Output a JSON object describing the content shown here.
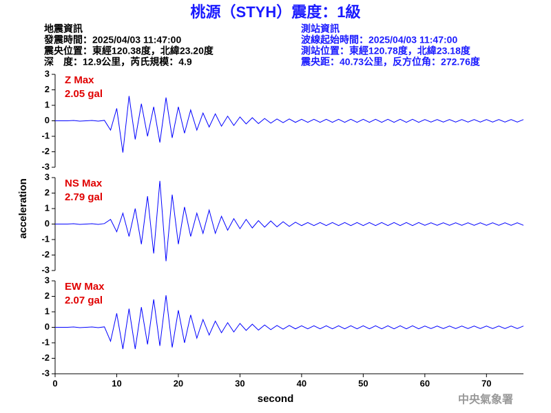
{
  "title": "桃源（STYH）震度：1級",
  "left_info": [
    "地震資訊",
    "發震時間：2025/04/03 11:47:00",
    "震央位置：東經120.38度，北緯23.20度",
    "深　度：12.9公里，芮氏規模：4.9"
  ],
  "right_info": [
    "測站資訊",
    "波線起始時間：2025/04/03 11:47:00",
    "測站位置：東經120.78度，北緯23.18度",
    "震央距：40.73公里，反方位角：272.76度"
  ],
  "ylabel": "acceleration",
  "xlabel": "second",
  "credit": "中央氣象署",
  "chart_data": [
    {
      "type": "line",
      "annotation": [
        "Z Max",
        "2.05 gal"
      ],
      "color": "#0000ff",
      "annotation_color": "#e00000",
      "xlim": [
        0,
        76
      ],
      "ylim": [
        -3,
        3
      ],
      "yticks": [
        -3,
        -2,
        -1,
        0,
        1,
        2,
        3
      ],
      "x": [
        0,
        1,
        2,
        3,
        4,
        5,
        6,
        7,
        8,
        9,
        10,
        11,
        12,
        13,
        14,
        15,
        16,
        17,
        18,
        19,
        20,
        21,
        22,
        23,
        24,
        25,
        26,
        27,
        28,
        29,
        30,
        31,
        32,
        33,
        34,
        35,
        36,
        37,
        38,
        39,
        40,
        41,
        42,
        43,
        44,
        45,
        46,
        47,
        48,
        49,
        50,
        51,
        52,
        53,
        54,
        55,
        56,
        57,
        58,
        59,
        60,
        61,
        62,
        63,
        64,
        65,
        66,
        67,
        68,
        69,
        70,
        71,
        72,
        73,
        74,
        75,
        76
      ],
      "values": [
        0,
        0,
        0,
        0.02,
        -0.02,
        0,
        0.02,
        -0.02,
        0.03,
        -0.6,
        0.8,
        -2.05,
        1.6,
        -1.2,
        1.1,
        -1.0,
        0.9,
        -1.4,
        1.5,
        -1.1,
        0.9,
        -0.8,
        0.7,
        -0.6,
        0.5,
        -0.4,
        0.45,
        -0.35,
        0.3,
        -0.3,
        0.25,
        -0.2,
        0.2,
        -0.18,
        0.15,
        -0.15,
        0.12,
        -0.12,
        0.12,
        -0.1,
        0.1,
        -0.1,
        0.1,
        -0.1,
        0.1,
        -0.1,
        0.1,
        -0.1,
        0.1,
        -0.1,
        0.1,
        -0.1,
        0.1,
        -0.1,
        0.1,
        -0.1,
        0.1,
        -0.1,
        0.1,
        -0.1,
        0.08,
        -0.08,
        0.08,
        -0.08,
        0.08,
        -0.08,
        0.08,
        -0.08,
        0.08,
        -0.08,
        0.08,
        -0.08,
        0.08,
        -0.08,
        0.08,
        -0.08,
        0.08
      ]
    },
    {
      "type": "line",
      "annotation": [
        "NS Max",
        "2.79 gal"
      ],
      "color": "#0000ff",
      "annotation_color": "#e00000",
      "xlim": [
        0,
        76
      ],
      "ylim": [
        -3,
        3
      ],
      "yticks": [
        -3,
        -2,
        -1,
        0,
        1,
        2,
        3
      ],
      "x": [
        0,
        1,
        2,
        3,
        4,
        5,
        6,
        7,
        8,
        9,
        10,
        11,
        12,
        13,
        14,
        15,
        16,
        17,
        18,
        19,
        20,
        21,
        22,
        23,
        24,
        25,
        26,
        27,
        28,
        29,
        30,
        31,
        32,
        33,
        34,
        35,
        36,
        37,
        38,
        39,
        40,
        41,
        42,
        43,
        44,
        45,
        46,
        47,
        48,
        49,
        50,
        51,
        52,
        53,
        54,
        55,
        56,
        57,
        58,
        59,
        60,
        61,
        62,
        63,
        64,
        65,
        66,
        67,
        68,
        69,
        70,
        71,
        72,
        73,
        74,
        75,
        76
      ],
      "values": [
        0,
        0,
        0,
        0.02,
        -0.02,
        0,
        0.02,
        -0.02,
        0.03,
        0.3,
        -0.5,
        0.7,
        -0.8,
        1.0,
        -1.3,
        1.8,
        -1.9,
        2.79,
        -2.4,
        1.9,
        -1.3,
        1.1,
        -0.8,
        0.7,
        -0.6,
        0.9,
        -0.6,
        0.5,
        -0.4,
        0.35,
        -0.3,
        0.3,
        -0.25,
        0.22,
        -0.2,
        0.2,
        -0.18,
        0.15,
        -0.15,
        0.12,
        -0.1,
        0.1,
        -0.1,
        0.1,
        -0.1,
        0.1,
        -0.1,
        0.1,
        -0.1,
        0.1,
        -0.1,
        0.1,
        -0.1,
        0.1,
        -0.1,
        0.1,
        -0.1,
        0.1,
        -0.1,
        0.1,
        -0.08,
        0.08,
        -0.08,
        0.08,
        -0.08,
        0.08,
        -0.08,
        0.08,
        -0.08,
        0.08,
        -0.08,
        0.08,
        -0.08,
        0.08,
        -0.08,
        0.08,
        -0.08
      ]
    },
    {
      "type": "line",
      "annotation": [
        "EW Max",
        "2.07 gal"
      ],
      "color": "#0000ff",
      "annotation_color": "#e00000",
      "xlim": [
        0,
        76
      ],
      "ylim": [
        -3,
        3
      ],
      "yticks": [
        -3,
        -2,
        -1,
        0,
        1,
        2,
        3
      ],
      "xticks": [
        0,
        10,
        20,
        30,
        40,
        50,
        60,
        70
      ],
      "x": [
        0,
        1,
        2,
        3,
        4,
        5,
        6,
        7,
        8,
        9,
        10,
        11,
        12,
        13,
        14,
        15,
        16,
        17,
        18,
        19,
        20,
        21,
        22,
        23,
        24,
        25,
        26,
        27,
        28,
        29,
        30,
        31,
        32,
        33,
        34,
        35,
        36,
        37,
        38,
        39,
        40,
        41,
        42,
        43,
        44,
        45,
        46,
        47,
        48,
        49,
        50,
        51,
        52,
        53,
        54,
        55,
        56,
        57,
        58,
        59,
        60,
        61,
        62,
        63,
        64,
        65,
        66,
        67,
        68,
        69,
        70,
        71,
        72,
        73,
        74,
        75,
        76
      ],
      "values": [
        0,
        0,
        0,
        0.02,
        -0.02,
        0,
        0.02,
        -0.02,
        0.03,
        -0.9,
        0.9,
        -1.4,
        1.2,
        -1.4,
        1.3,
        -1.1,
        1.8,
        -1.2,
        2.07,
        -1.3,
        1.1,
        -1.0,
        0.8,
        -0.7,
        0.5,
        -0.5,
        0.4,
        -0.35,
        0.3,
        -0.3,
        0.25,
        -0.2,
        0.2,
        -0.18,
        0.15,
        -0.15,
        0.12,
        -0.12,
        0.12,
        -0.1,
        0.1,
        -0.1,
        0.1,
        -0.1,
        0.1,
        -0.1,
        0.1,
        -0.1,
        0.1,
        -0.1,
        0.1,
        -0.1,
        0.1,
        -0.1,
        0.1,
        -0.1,
        0.1,
        -0.1,
        0.1,
        -0.1,
        0.08,
        -0.08,
        0.08,
        -0.08,
        0.08,
        -0.08,
        0.08,
        -0.08,
        0.08,
        -0.08,
        0.08,
        -0.08,
        0.08,
        -0.08,
        0.08,
        -0.08,
        0.08
      ]
    }
  ]
}
